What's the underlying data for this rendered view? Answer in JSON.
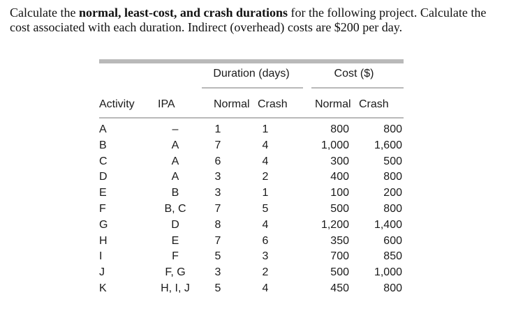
{
  "question": {
    "part1": "Calculate the ",
    "bold": "normal, least-cost, and crash durations",
    "part2": " for the following project. Calculate the cost associated with each duration. Indirect (overhead) costs are $200 per day."
  },
  "table": {
    "group_duration": "Duration (days)",
    "group_cost": "Cost ($)",
    "col_activity": "Activity",
    "col_ipa": "IPA",
    "col_dur_normal": "Normal",
    "col_dur_crash": "Crash",
    "col_cost_normal": "Normal",
    "col_cost_crash": "Crash",
    "rows": [
      {
        "activity": "A",
        "ipa": "–",
        "dn": "1",
        "dc": "1",
        "cn": "800",
        "cc": "800"
      },
      {
        "activity": "B",
        "ipa": "A",
        "dn": "7",
        "dc": "4",
        "cn": "1,000",
        "cc": "1,600"
      },
      {
        "activity": "C",
        "ipa": "A",
        "dn": "6",
        "dc": "4",
        "cn": "300",
        "cc": "500"
      },
      {
        "activity": "D",
        "ipa": "A",
        "dn": "3",
        "dc": "2",
        "cn": "400",
        "cc": "800"
      },
      {
        "activity": "E",
        "ipa": "B",
        "dn": "3",
        "dc": "1",
        "cn": "100",
        "cc": "200"
      },
      {
        "activity": "F",
        "ipa": "B, C",
        "dn": "7",
        "dc": "5",
        "cn": "500",
        "cc": "800"
      },
      {
        "activity": "G",
        "ipa": "D",
        "dn": "8",
        "dc": "4",
        "cn": "1,200",
        "cc": "1,400"
      },
      {
        "activity": "H",
        "ipa": "E",
        "dn": "7",
        "dc": "6",
        "cn": "350",
        "cc": "600"
      },
      {
        "activity": "I",
        "ipa": "F",
        "dn": "5",
        "dc": "3",
        "cn": "700",
        "cc": "850"
      },
      {
        "activity": "J",
        "ipa": "F, G",
        "dn": "3",
        "dc": "2",
        "cn": "500",
        "cc": "1,000"
      },
      {
        "activity": "K",
        "ipa": "H, I, J",
        "dn": "5",
        "dc": "4",
        "cn": "450",
        "cc": "800"
      }
    ]
  }
}
